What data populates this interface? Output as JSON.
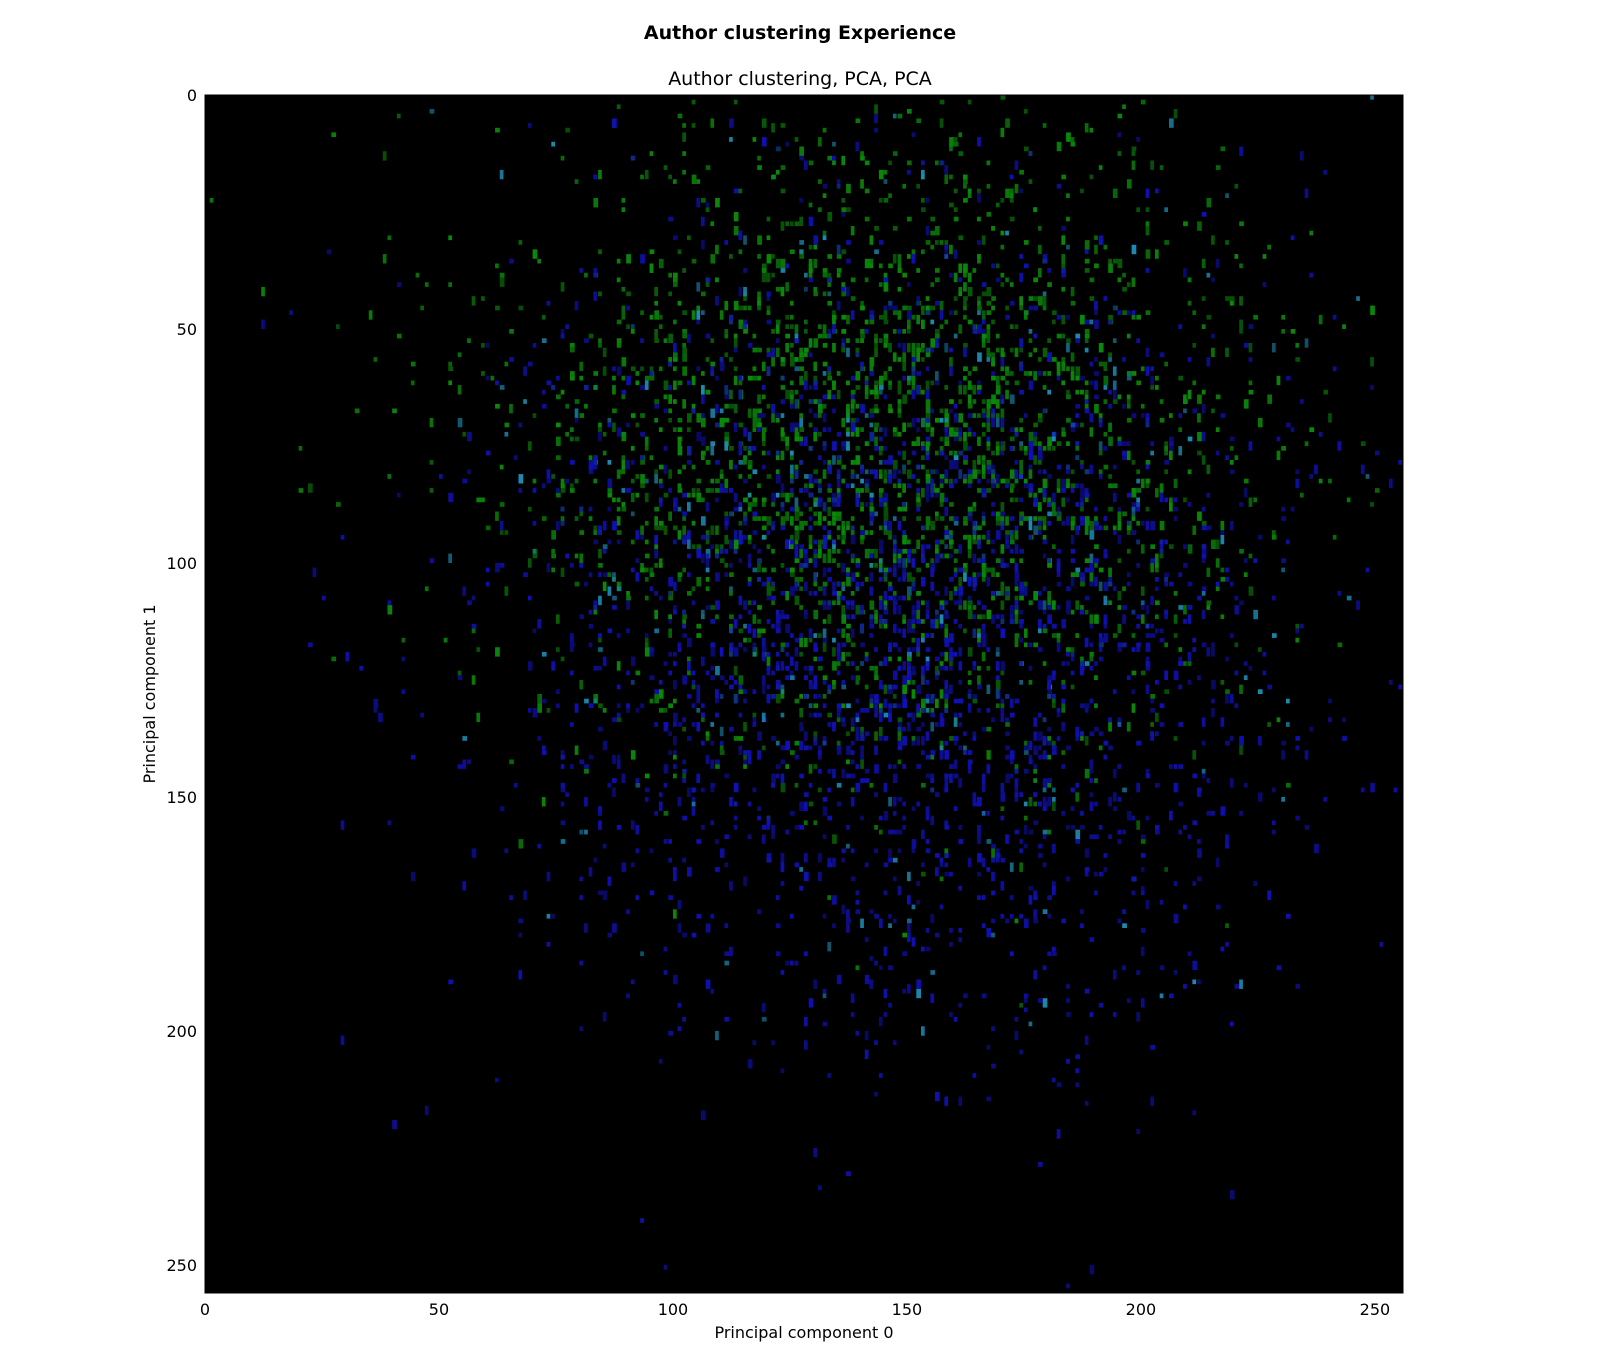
{
  "figure_title": "Author clustering Experience",
  "chart_data": {
    "type": "heatmap",
    "title": "Author clustering, PCA, PCA",
    "xlabel": "Principal component 0",
    "ylabel": "Principal component 1",
    "xlim": [
      0,
      256
    ],
    "ylim": [
      256,
      0
    ],
    "x_ticks": [
      0,
      50,
      100,
      150,
      200,
      250
    ],
    "y_ticks": [
      0,
      50,
      100,
      150,
      200,
      250
    ],
    "background": "#000000",
    "channels": [
      {
        "color": "#0a8a0a",
        "center": [
          145,
          75
        ],
        "spread": [
          42,
          38
        ]
      },
      {
        "color": "#1010b4",
        "center": [
          150,
          115
        ],
        "spread": [
          45,
          45
        ]
      }
    ],
    "colors": {
      "green": "#0a8a0a",
      "blue": "#1010b4",
      "cyan": "#1c8cb4"
    }
  }
}
